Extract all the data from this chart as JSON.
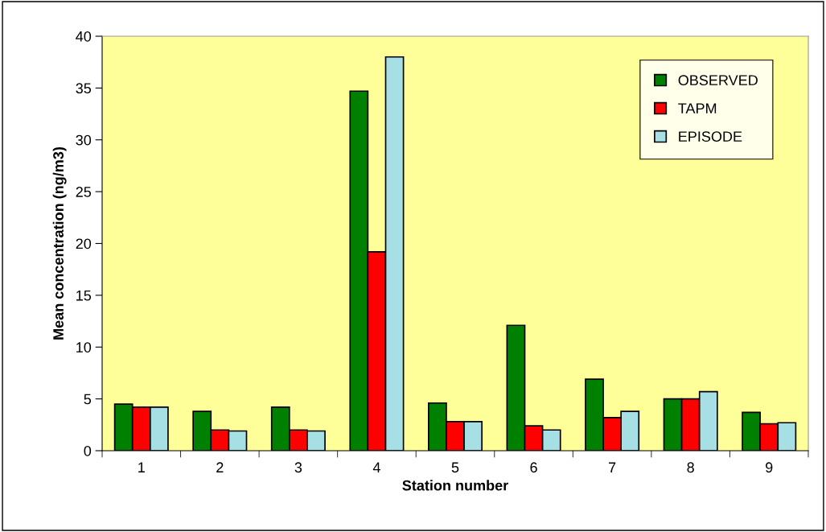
{
  "chart_data": {
    "type": "bar",
    "xlabel": "Station number",
    "ylabel": "Mean concentration (ng/m3)",
    "categories": [
      "1",
      "2",
      "3",
      "4",
      "5",
      "6",
      "7",
      "8",
      "9"
    ],
    "series": [
      {
        "name": "OBSERVED",
        "color": "#008000",
        "values": [
          4.5,
          3.8,
          4.2,
          34.7,
          4.6,
          12.1,
          6.9,
          5.0,
          3.7
        ]
      },
      {
        "name": "TAPM",
        "color": "#ff0000",
        "values": [
          4.2,
          2.0,
          2.0,
          19.2,
          2.8,
          2.4,
          3.2,
          5.0,
          2.6
        ]
      },
      {
        "name": "EPISODE",
        "color": "#a6e0e4",
        "values": [
          4.2,
          1.9,
          1.9,
          38.0,
          2.8,
          2.0,
          3.8,
          5.7,
          2.7
        ]
      }
    ],
    "ylim": [
      0,
      40
    ],
    "yticks": [
      0,
      5,
      10,
      15,
      20,
      25,
      30,
      35,
      40
    ],
    "grid": false,
    "legend": "top right"
  }
}
